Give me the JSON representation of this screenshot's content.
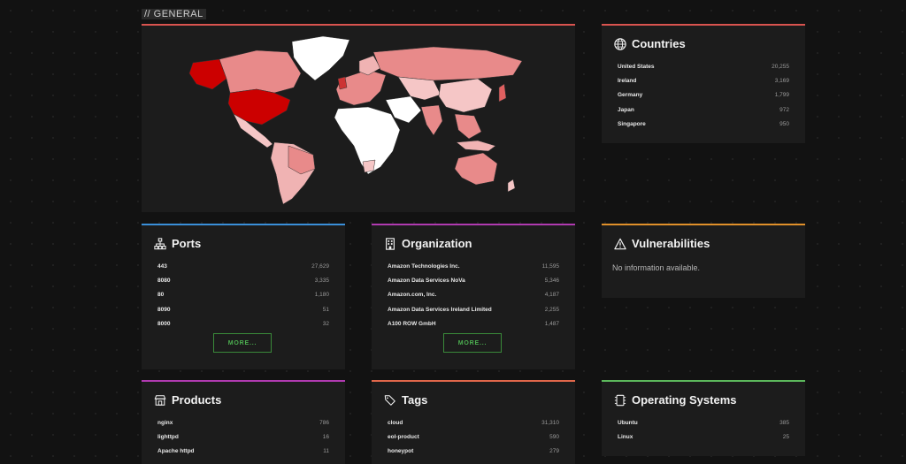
{
  "section": {
    "title": "// GENERAL"
  },
  "map": {
    "icon": "world-map"
  },
  "countries": {
    "title": "Countries",
    "icon": "globe-icon",
    "items": [
      {
        "name": "United States",
        "count": "20,255"
      },
      {
        "name": "Ireland",
        "count": "3,169"
      },
      {
        "name": "Germany",
        "count": "1,799"
      },
      {
        "name": "Japan",
        "count": "972"
      },
      {
        "name": "Singapore",
        "count": "950"
      }
    ]
  },
  "ports": {
    "title": "Ports",
    "icon": "sitemap-icon",
    "items": [
      {
        "name": "443",
        "count": "27,629"
      },
      {
        "name": "8080",
        "count": "3,335"
      },
      {
        "name": "80",
        "count": "1,180"
      },
      {
        "name": "8090",
        "count": "51"
      },
      {
        "name": "8000",
        "count": "32"
      }
    ],
    "more_label": "MORE..."
  },
  "organization": {
    "title": "Organization",
    "icon": "building-icon",
    "items": [
      {
        "name": "Amazon Technologies Inc.",
        "count": "11,595"
      },
      {
        "name": "Amazon Data Services NoVa",
        "count": "5,346"
      },
      {
        "name": "Amazon.com, Inc.",
        "count": "4,187"
      },
      {
        "name": "Amazon Data Services Ireland Limited",
        "count": "2,255"
      },
      {
        "name": "A100 ROW GmbH",
        "count": "1,487"
      }
    ],
    "more_label": "MORE..."
  },
  "vulnerabilities": {
    "title": "Vulnerabilities",
    "icon": "warning-icon",
    "message": "No information available."
  },
  "products": {
    "title": "Products",
    "icon": "store-icon",
    "items": [
      {
        "name": "nginx",
        "count": "786"
      },
      {
        "name": "lighttpd",
        "count": "16"
      },
      {
        "name": "Apache httpd",
        "count": "11"
      }
    ]
  },
  "tags": {
    "title": "Tags",
    "icon": "tags-icon",
    "items": [
      {
        "name": "cloud",
        "count": "31,310"
      },
      {
        "name": "eol-product",
        "count": "590"
      },
      {
        "name": "honeypot",
        "count": "279"
      }
    ]
  },
  "os": {
    "title": "Operating Systems",
    "icon": "chip-icon",
    "items": [
      {
        "name": "Ubuntu",
        "count": "385"
      },
      {
        "name": "Linux",
        "count": "25"
      }
    ]
  },
  "colors": {
    "accent_red": "#d9534f",
    "accent_blue": "#3a8fd9",
    "accent_purple": "#b03ab0",
    "accent_orange": "#e0902a",
    "accent_green": "#5cb85c",
    "map_high": "#cc0000",
    "map_mid": "#e88a8a",
    "map_low": "#f5c6c6"
  }
}
